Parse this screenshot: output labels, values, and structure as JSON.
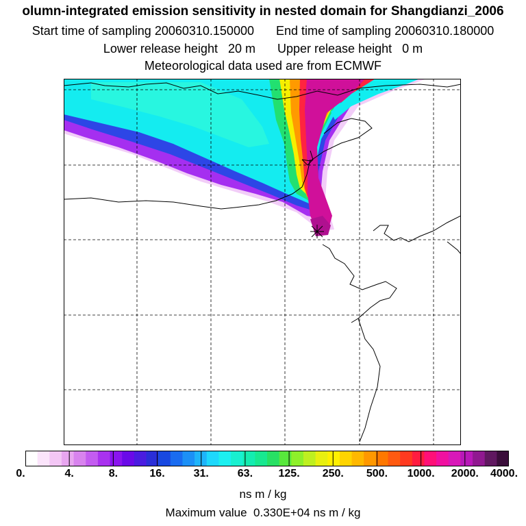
{
  "title": {
    "line1": "olumn-integrated emission sensitivity in nested domain for Shangdianzi_2006",
    "start_label": "Start time of sampling",
    "start_value": "20060310.150000",
    "end_label": "End time of sampling",
    "end_value": "20060310.180000",
    "lower_label": "Lower release height",
    "lower_value": "20 m",
    "upper_label": "Upper release height",
    "upper_value": "0 m",
    "line4": "Meteorological data used are from ECMWF"
  },
  "colorbar": {
    "ticks": [
      "0.",
      "4.",
      "8.",
      "16.",
      "31.",
      "63.",
      "125.",
      "250.",
      "500.",
      "1000.",
      "2000.",
      "4000."
    ],
    "units": "ns m / kg",
    "colors": [
      "#ffffff",
      "#fbe4fb",
      "#f3c6f5",
      "#e8a6f0",
      "#d883ee",
      "#c35cf0",
      "#a932ef",
      "#8a14ef",
      "#6a0ae8",
      "#4a1ce0",
      "#2a2ed8",
      "#1848e0",
      "#1a6cf0",
      "#1c90f6",
      "#1eb4fa",
      "#1ed8fc",
      "#1cf0f0",
      "#18f0d0",
      "#14ecb0",
      "#18e890",
      "#28e064",
      "#58e83c",
      "#8ef02a",
      "#bef020",
      "#e8f010",
      "#fff000",
      "#ffd400",
      "#ffb800",
      "#ff9800",
      "#ff7800",
      "#ff5a10",
      "#ff3a20",
      "#ff1c40",
      "#ff1078",
      "#f010a0",
      "#d818b8",
      "#b818b8",
      "#901890",
      "#601860",
      "#3a0e3a"
    ]
  },
  "max_value_label": "Maximum value",
  "max_value": "0.330E+04 ns m / kg",
  "map": {
    "receptor_marker": "star-marker",
    "colors": {
      "light_magenta": "#f0c8f8",
      "violet": "#a020f0",
      "blue": "#3040e8",
      "cyan": "#10f0f0",
      "green": "#20e070",
      "yellow": "#f8f000",
      "orange": "#ff9800",
      "red": "#ff2040",
      "deep_magenta": "#c0109c"
    }
  }
}
